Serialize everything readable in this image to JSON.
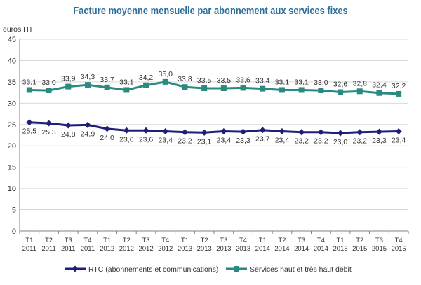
{
  "chart_data": {
    "type": "line",
    "title": "Facture moyenne mensuelle par abonnement aux services fixes",
    "ylabel": "euros HT",
    "xlabel": "",
    "ylim": [
      0,
      45
    ],
    "yticks": [
      0,
      5,
      10,
      15,
      20,
      25,
      30,
      35,
      40,
      45
    ],
    "grid": true,
    "legend_position": "bottom",
    "categories": [
      [
        "T1",
        "2011"
      ],
      [
        "T2",
        "2011"
      ],
      [
        "T3",
        "2011"
      ],
      [
        "T4",
        "2011"
      ],
      [
        "T1",
        "2012"
      ],
      [
        "T2",
        "2012"
      ],
      [
        "T3",
        "2012"
      ],
      [
        "T4",
        "2012"
      ],
      [
        "T1",
        "2013"
      ],
      [
        "T2",
        "2013"
      ],
      [
        "T3",
        "2013"
      ],
      [
        "T4",
        "2013"
      ],
      [
        "T1",
        "2014"
      ],
      [
        "T2",
        "2014"
      ],
      [
        "T3",
        "2014"
      ],
      [
        "T4",
        "2014"
      ],
      [
        "T1",
        "2015"
      ],
      [
        "T2",
        "2015"
      ],
      [
        "T3",
        "2015"
      ],
      [
        "T4",
        "2015"
      ]
    ],
    "series": [
      {
        "name": "RTC (abonnements et communications)",
        "color": "#1f1f7a",
        "marker": "diamond",
        "values": [
          25.5,
          25.3,
          24.8,
          24.9,
          24.0,
          23.6,
          23.6,
          23.4,
          23.2,
          23.1,
          23.4,
          23.3,
          23.7,
          23.4,
          23.2,
          23.2,
          23.0,
          23.2,
          23.3,
          23.4
        ],
        "labels": [
          "25,5",
          "25,3",
          "24,8",
          "24,9",
          "24,0",
          "23,6",
          "23,6",
          "23,4",
          "23,2",
          "23,1",
          "23,4",
          "23,3",
          "23,7",
          "23,4",
          "23,2",
          "23,2",
          "23,0",
          "23,2",
          "23,3",
          "23,4"
        ]
      },
      {
        "name": "Services haut et très haut débit",
        "color": "#2a8a80",
        "marker": "square",
        "values": [
          33.1,
          33.0,
          33.9,
          34.3,
          33.7,
          33.1,
          34.2,
          35.0,
          33.8,
          33.5,
          33.5,
          33.6,
          33.4,
          33.1,
          33.1,
          33.0,
          32.6,
          32.8,
          32.4,
          32.2
        ],
        "labels": [
          "33,1",
          "33,0",
          "33,9",
          "34,3",
          "33,7",
          "33,1",
          "34,2",
          "35,0",
          "33,8",
          "33,5",
          "33,5",
          "33,6",
          "33,4",
          "33,1",
          "33,1",
          "33,0",
          "32,6",
          "32,8",
          "32,4",
          "32,2"
        ]
      }
    ]
  }
}
